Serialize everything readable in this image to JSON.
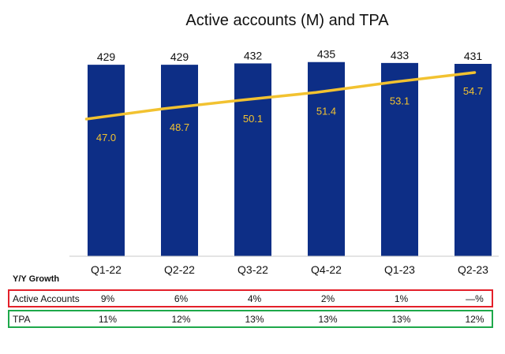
{
  "chart_data": {
    "type": "bar",
    "title": "Active accounts (M) and TPA",
    "categories": [
      "Q1-22",
      "Q2-22",
      "Q3-22",
      "Q4-22",
      "Q1-23",
      "Q2-23"
    ],
    "series": [
      {
        "name": "Active accounts (M)",
        "type": "bar",
        "values": [
          429,
          429,
          432,
          435,
          433,
          431
        ],
        "color": "#0d2e86"
      },
      {
        "name": "TPA",
        "type": "line",
        "values": [
          47.0,
          48.7,
          50.1,
          51.4,
          53.1,
          54.7
        ],
        "color": "#f2c230"
      }
    ],
    "value_labels": {
      "bars": [
        "429",
        "429",
        "432",
        "435",
        "433",
        "431"
      ],
      "line": [
        "47.0",
        "48.7",
        "50.1",
        "51.4",
        "53.1",
        "54.7"
      ]
    },
    "grid": false,
    "legend": "none"
  },
  "growth_table": {
    "header": "Y/Y Growth",
    "rows": [
      {
        "label": "Active Accounts",
        "values": [
          "9%",
          "6%",
          "4%",
          "2%",
          "1%",
          "—%"
        ],
        "border_color": "#e3202a"
      },
      {
        "label": "TPA",
        "values": [
          "11%",
          "12%",
          "13%",
          "13%",
          "13%",
          "12%"
        ],
        "border_color": "#1ea84a"
      }
    ]
  }
}
